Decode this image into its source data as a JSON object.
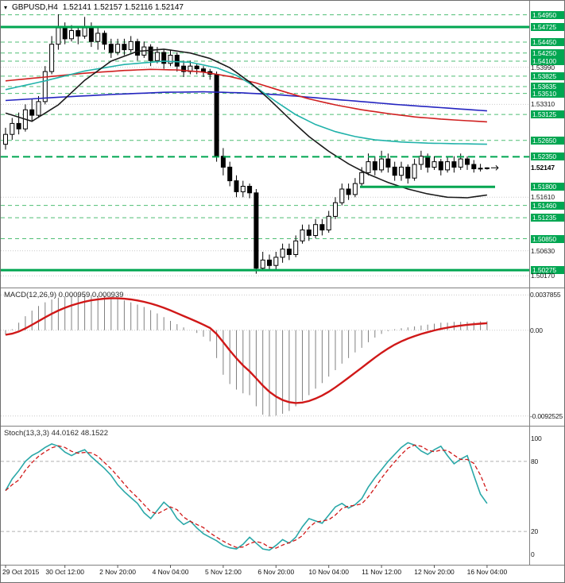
{
  "header": {
    "icon": "▾",
    "symbol_period": "GBPUSD,H4",
    "ohlc": "1.52141 1.52157 1.52116 1.52147"
  },
  "colors": {
    "background": "#ffffff",
    "grid": "#c9c9c9",
    "separator": "#808080",
    "level_green": "#00a651",
    "level_green_light": "#4fbe74",
    "candle_up_fill": "#ffffff",
    "candle_down_fill": "#000000",
    "candle_border": "#000000",
    "ma_fast": "#1a1a1a",
    "ma_medium": "#20b2aa",
    "ma_slow": "#d02020",
    "ma_slowest": "#2424c0",
    "macd_histogram": "#808080",
    "macd_signal": "#d01818",
    "stoch_main": "#2aa8a8",
    "stoch_signal": "#d01818",
    "axis_text": "#1a1a1a"
  },
  "time_axis_note": "labels are rendered from chart_data[0].x_axis.labels",
  "chart_data": [
    {
      "type": "candlestick",
      "title": "GBPUSD,H4",
      "ohlc_display": "1.52141 1.52157 1.52116 1.52147",
      "y_axis": {
        "top_price": 1.5506,
        "bottom_price": 1.5
      },
      "x_axis": {
        "labels": [
          {
            "text": "29 Oct 2015",
            "idx": 0
          },
          {
            "text": "30 Oct 12:00",
            "idx": 9
          },
          {
            "text": "2 Nov 20:00",
            "idx": 17
          },
          {
            "text": "4 Nov 04:00",
            "idx": 25
          },
          {
            "text": "5 Nov 12:00",
            "idx": 33
          },
          {
            "text": "6 Nov 20:00",
            "idx": 41
          },
          {
            "text": "10 Nov 04:00",
            "idx": 49
          },
          {
            "text": "11 Nov 12:00",
            "idx": 57
          },
          {
            "text": "12 Nov 20:00",
            "idx": 65
          },
          {
            "text": "16 Nov 04:00",
            "idx": 73
          }
        ]
      },
      "candles": [
        [
          1.5258,
          1.5288,
          1.5248,
          1.5276
        ],
        [
          1.5276,
          1.5306,
          1.5266,
          1.5296
        ],
        [
          1.5296,
          1.5316,
          1.5276,
          1.5286
        ],
        [
          1.5286,
          1.5331,
          1.5281,
          1.5321
        ],
        [
          1.5321,
          1.5341,
          1.5301,
          1.5311
        ],
        [
          1.5311,
          1.5346,
          1.5306,
          1.5336
        ],
        [
          1.5336,
          1.5401,
          1.5331,
          1.5391
        ],
        [
          1.5391,
          1.5456,
          1.5386,
          1.5441
        ],
        [
          1.5441,
          1.5496,
          1.5431,
          1.5471
        ],
        [
          1.5471,
          1.5481,
          1.5441,
          1.5451
        ],
        [
          1.5451,
          1.5476,
          1.5446,
          1.5466
        ],
        [
          1.5466,
          1.5471,
          1.5441,
          1.5456
        ],
        [
          1.5456,
          1.5491,
          1.5451,
          1.5471
        ],
        [
          1.5471,
          1.5481,
          1.5436,
          1.5446
        ],
        [
          1.5446,
          1.5471,
          1.5431,
          1.5461
        ],
        [
          1.5461,
          1.5466,
          1.5431,
          1.5441
        ],
        [
          1.5441,
          1.5451,
          1.5416,
          1.5426
        ],
        [
          1.5426,
          1.5451,
          1.5421,
          1.5441
        ],
        [
          1.5441,
          1.5451,
          1.5421,
          1.5431
        ],
        [
          1.5431,
          1.5456,
          1.5426,
          1.5446
        ],
        [
          1.5446,
          1.5451,
          1.5411,
          1.5421
        ],
        [
          1.5421,
          1.5446,
          1.5416,
          1.5436
        ],
        [
          1.5436,
          1.5441,
          1.5401,
          1.5411
        ],
        [
          1.5411,
          1.5436,
          1.5406,
          1.5426
        ],
        [
          1.5426,
          1.5431,
          1.5396,
          1.5406
        ],
        [
          1.5406,
          1.5431,
          1.5401,
          1.5421
        ],
        [
          1.5421,
          1.5426,
          1.5391,
          1.5401
        ],
        [
          1.5401,
          1.5411,
          1.5381,
          1.5391
        ],
        [
          1.5391,
          1.5411,
          1.5386,
          1.5401
        ],
        [
          1.5401,
          1.5406,
          1.5386,
          1.5396
        ],
        [
          1.5396,
          1.5401,
          1.5381,
          1.5391
        ],
        [
          1.5391,
          1.5396,
          1.5376,
          1.5386
        ],
        [
          1.5386,
          1.5391,
          1.5226,
          1.5236
        ],
        [
          1.5236,
          1.5251,
          1.5201,
          1.5216
        ],
        [
          1.5216,
          1.5226,
          1.5181,
          1.5191
        ],
        [
          1.5191,
          1.5201,
          1.5161,
          1.5171
        ],
        [
          1.5171,
          1.5191,
          1.5161,
          1.5181
        ],
        [
          1.5181,
          1.5186,
          1.5159,
          1.5169
        ],
        [
          1.5169,
          1.5176,
          1.5021,
          1.5031
        ],
        [
          1.5031,
          1.5061,
          1.5026,
          1.5046
        ],
        [
          1.5046,
          1.5056,
          1.5027,
          1.5036
        ],
        [
          1.5036,
          1.5061,
          1.5029,
          1.5051
        ],
        [
          1.5051,
          1.5076,
          1.5041,
          1.5066
        ],
        [
          1.5066,
          1.5076,
          1.5046,
          1.5056
        ],
        [
          1.5056,
          1.5091,
          1.5051,
          1.5081
        ],
        [
          1.5081,
          1.5111,
          1.5076,
          1.5101
        ],
        [
          1.5101,
          1.5111,
          1.5081,
          1.5091
        ],
        [
          1.5091,
          1.5121,
          1.5086,
          1.5111
        ],
        [
          1.5111,
          1.5121,
          1.5091,
          1.5101
        ],
        [
          1.5101,
          1.5136,
          1.5096,
          1.5126
        ],
        [
          1.5126,
          1.5161,
          1.5121,
          1.5151
        ],
        [
          1.5151,
          1.5186,
          1.5146,
          1.5176
        ],
        [
          1.5176,
          1.5186,
          1.5156,
          1.5166
        ],
        [
          1.5166,
          1.5196,
          1.5161,
          1.5186
        ],
        [
          1.5186,
          1.5216,
          1.5181,
          1.5206
        ],
        [
          1.5206,
          1.5241,
          1.5201,
          1.5226
        ],
        [
          1.5226,
          1.5236,
          1.5201,
          1.5211
        ],
        [
          1.5211,
          1.5246,
          1.5206,
          1.5231
        ],
        [
          1.5231,
          1.5241,
          1.5206,
          1.5216
        ],
        [
          1.5216,
          1.5226,
          1.5191,
          1.5201
        ],
        [
          1.5201,
          1.5226,
          1.5191,
          1.5216
        ],
        [
          1.5216,
          1.5221,
          1.5186,
          1.5196
        ],
        [
          1.5196,
          1.5231,
          1.5191,
          1.5221
        ],
        [
          1.5221,
          1.5246,
          1.5211,
          1.5236
        ],
        [
          1.5236,
          1.5241,
          1.5206,
          1.5216
        ],
        [
          1.5216,
          1.5236,
          1.5211,
          1.5226
        ],
        [
          1.5226,
          1.5231,
          1.5201,
          1.5211
        ],
        [
          1.5211,
          1.5236,
          1.5206,
          1.5226
        ],
        [
          1.5226,
          1.5236,
          1.5206,
          1.5216
        ],
        [
          1.5216,
          1.5241,
          1.5211,
          1.5231
        ],
        [
          1.5231,
          1.5236,
          1.5211,
          1.5221
        ],
        [
          1.5221,
          1.5229,
          1.5206,
          1.5213
        ],
        [
          1.5213,
          1.5222,
          1.5208,
          1.5214
        ],
        [
          1.52141,
          1.52157,
          1.52116,
          1.52147
        ]
      ],
      "moving_averages": [
        {
          "name": "ma-slowest-blue",
          "color_key": "ma_slowest",
          "points": [
            [
              0,
              1.5338
            ],
            [
              8,
              1.5344
            ],
            [
              16,
              1.5349
            ],
            [
              24,
              1.5353
            ],
            [
              30,
              1.5354
            ],
            [
              36,
              1.5352
            ],
            [
              42,
              1.5348
            ],
            [
              48,
              1.5342
            ],
            [
              54,
              1.5336
            ],
            [
              60,
              1.533
            ],
            [
              66,
              1.5325
            ],
            [
              73,
              1.5319
            ]
          ]
        },
        {
          "name": "ma-slow-red",
          "color_key": "ma_slow",
          "points": [
            [
              0,
              1.5374
            ],
            [
              6,
              1.5381
            ],
            [
              12,
              1.5388
            ],
            [
              18,
              1.5393
            ],
            [
              22,
              1.5395
            ],
            [
              26,
              1.5394
            ],
            [
              30,
              1.539
            ],
            [
              34,
              1.5382
            ],
            [
              38,
              1.537
            ],
            [
              42,
              1.5355
            ],
            [
              46,
              1.5341
            ],
            [
              50,
              1.533
            ],
            [
              54,
              1.5321
            ],
            [
              58,
              1.5314
            ],
            [
              62,
              1.5308
            ],
            [
              66,
              1.5304
            ],
            [
              70,
              1.5301
            ],
            [
              73,
              1.5299
            ]
          ]
        },
        {
          "name": "ma-medium-teal",
          "color_key": "ma_medium",
          "points": [
            [
              0,
              1.5358
            ],
            [
              6,
              1.5374
            ],
            [
              12,
              1.5392
            ],
            [
              18,
              1.5404
            ],
            [
              24,
              1.541
            ],
            [
              28,
              1.5408
            ],
            [
              32,
              1.5398
            ],
            [
              35,
              1.5384
            ],
            [
              38,
              1.5362
            ],
            [
              41,
              1.5336
            ],
            [
              44,
              1.5312
            ],
            [
              47,
              1.5294
            ],
            [
              50,
              1.5281
            ],
            [
              53,
              1.5272
            ],
            [
              56,
              1.5266
            ],
            [
              60,
              1.5262
            ],
            [
              64,
              1.526
            ],
            [
              68,
              1.5259
            ],
            [
              73,
              1.5258
            ]
          ]
        },
        {
          "name": "ma-fast-black",
          "color_key": "ma_fast",
          "points": [
            [
              0,
              1.5315
            ],
            [
              4,
              1.53
            ],
            [
              8,
              1.533
            ],
            [
              12,
              1.5375
            ],
            [
              16,
              1.541
            ],
            [
              20,
              1.5428
            ],
            [
              24,
              1.5432
            ],
            [
              28,
              1.5425
            ],
            [
              31,
              1.5415
            ],
            [
              34,
              1.5398
            ],
            [
              37,
              1.5372
            ],
            [
              40,
              1.534
            ],
            [
              43,
              1.5305
            ],
            [
              46,
              1.5272
            ],
            [
              49,
              1.5245
            ],
            [
              52,
              1.5222
            ],
            [
              55,
              1.5203
            ],
            [
              58,
              1.5188
            ],
            [
              61,
              1.5176
            ],
            [
              64,
              1.5167
            ],
            [
              67,
              1.5161
            ],
            [
              70,
              1.516
            ],
            [
              73,
              1.5165
            ]
          ]
        }
      ],
      "levels": [
        {
          "price": 1.5495,
          "label": "1.54950",
          "type": "minor"
        },
        {
          "price": 1.54725,
          "label": "1.54725",
          "type": "major"
        },
        {
          "price": 1.5445,
          "label": "1.54450",
          "type": "minor"
        },
        {
          "price": 1.5425,
          "label": "1.54250",
          "type": "minor"
        },
        {
          "price": 1.541,
          "label": "1.54100",
          "type": "minor"
        },
        {
          "price": 1.5399,
          "label": "1.53990",
          "type": "plain"
        },
        {
          "price": 1.53825,
          "label": "1.53825",
          "type": "minor"
        },
        {
          "price": 1.53635,
          "label": "1.53635",
          "type": "minor"
        },
        {
          "price": 1.5351,
          "label": "1.53510",
          "type": "minor"
        },
        {
          "price": 1.5331,
          "label": "1.53310",
          "type": "plain"
        },
        {
          "price": 1.53125,
          "label": "1.53125",
          "type": "minor"
        },
        {
          "price": 1.5265,
          "label": "1.52650",
          "type": "minor"
        },
        {
          "price": 1.5235,
          "label": "1.52350",
          "type": "major-dashed"
        },
        {
          "price": 1.518,
          "label": "1.51800",
          "type": "major-partial"
        },
        {
          "price": 1.5161,
          "label": "1.51610",
          "type": "plain"
        },
        {
          "price": 1.5146,
          "label": "1.51460",
          "type": "minor"
        },
        {
          "price": 1.51235,
          "label": "1.51235",
          "type": "minor"
        },
        {
          "price": 1.5085,
          "label": "1.50850",
          "type": "minor"
        },
        {
          "price": 1.5063,
          "label": "1.50630",
          "type": "plain"
        },
        {
          "price": 1.50275,
          "label": "1.50275",
          "type": "major"
        },
        {
          "price": 1.5017,
          "label": "1.50170",
          "type": "plain"
        }
      ],
      "current_price": 1.52147,
      "current_price_label": "1.52147"
    },
    {
      "type": "bar",
      "name": "MACD(12,26,9)",
      "label": "MACD(12,26,9) 0.000959 0.000939",
      "main_value": 0.000959,
      "signal_value": 0.000939,
      "axis_labels": [
        {
          "value": 0.0037855,
          "text": "0.0037855"
        },
        {
          "value": 0,
          "text": "0.00"
        },
        {
          "value": -0.0092525,
          "text": "-0.0092525"
        }
      ],
      "range": {
        "top": 0.00425,
        "bottom": -0.00995
      },
      "values": [
        -0.0005,
        0.0001,
        0.0008,
        0.0015,
        0.0021,
        0.0026,
        0.003,
        0.0033,
        0.0035,
        0.0036,
        0.0037,
        0.00375,
        0.0038,
        0.0038,
        0.00375,
        0.0037,
        0.0036,
        0.0034,
        0.0032,
        0.003,
        0.00275,
        0.0025,
        0.00215,
        0.0018,
        0.0014,
        0.001,
        0.00065,
        0.0003,
        0.0,
        -0.0003,
        -0.0007,
        -0.0012,
        -0.003,
        -0.0048,
        -0.0058,
        -0.0064,
        -0.0068,
        -0.007,
        -0.0082,
        -0.0091,
        -0.0093,
        -0.0092,
        -0.009,
        -0.0087,
        -0.0082,
        -0.0076,
        -0.007,
        -0.0063,
        -0.0057,
        -0.005,
        -0.0043,
        -0.0036,
        -0.003,
        -0.0024,
        -0.0019,
        -0.0013,
        -0.0008,
        -0.0004,
        -0.0001,
        0.0001,
        0.0002,
        0.0003,
        0.0004,
        0.0005,
        0.0006,
        0.0007,
        0.0008,
        0.0008,
        0.0009,
        0.0009,
        0.0009,
        0.0009,
        0.00095,
        0.00096
      ],
      "signal_description": "EMA9 of values, drawn as thick red line"
    },
    {
      "type": "line",
      "name": "Stoch(13,3,3)",
      "label": "Stoch(13,3,3) 44.0162 48.1522",
      "main_value": 44.0162,
      "signal_value": 48.1522,
      "axis_labels": [
        {
          "value": 100,
          "text": "100"
        },
        {
          "value": 80,
          "text": "80"
        },
        {
          "value": 20,
          "text": "20"
        },
        {
          "value": 0,
          "text": "0"
        }
      ],
      "grid_levels": [
        80,
        20
      ],
      "range": {
        "top": 105.8,
        "bottom": -5.8
      },
      "k_values": [
        55,
        65,
        72,
        80,
        85,
        88,
        92,
        95,
        93,
        88,
        85,
        88,
        90,
        84,
        79,
        74,
        68,
        60,
        54,
        49,
        44,
        36,
        31,
        38,
        45,
        40,
        31,
        26,
        29,
        23,
        18,
        15,
        12,
        8,
        6,
        5,
        9,
        15,
        10,
        5,
        4,
        8,
        13,
        10,
        15,
        24,
        31,
        29,
        27,
        34,
        41,
        44,
        40,
        43,
        48,
        58,
        66,
        73,
        80,
        86,
        92,
        96,
        94,
        89,
        86,
        90,
        93,
        85,
        78,
        82,
        85,
        68,
        52,
        44
      ],
      "signal_description": "SMA3 of k_values, drawn as red dashed line"
    }
  ]
}
